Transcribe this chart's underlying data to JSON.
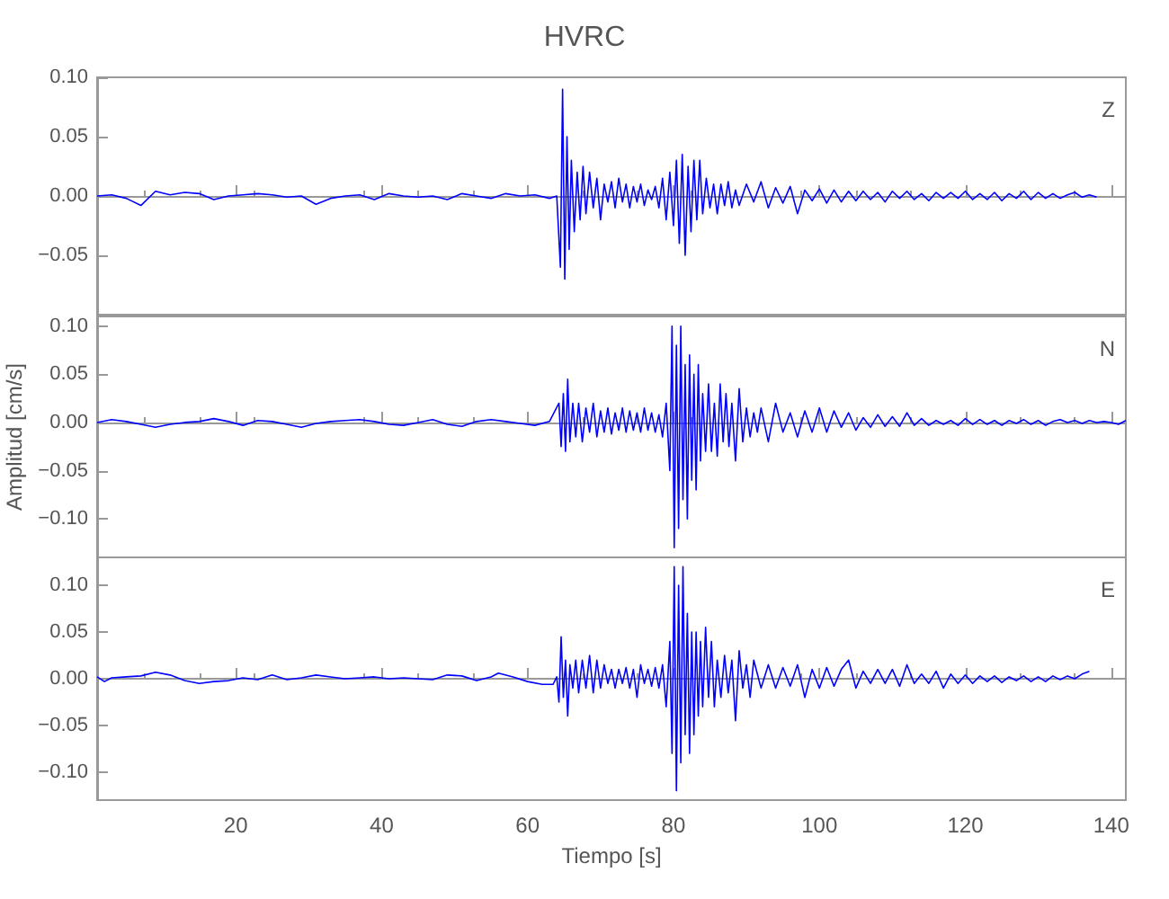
{
  "chart_data": [
    {
      "type": "line",
      "title": "HVRC",
      "annotations": [
        "Z"
      ],
      "xlim": [
        1,
        142
      ],
      "xticks": [
        20,
        40,
        60,
        80,
        100,
        120,
        140
      ],
      "ylim": [
        -0.1,
        0.1
      ],
      "yticks": [
        {
          "value": -0.05,
          "label": "−0.05"
        },
        {
          "value": 0,
          "label": "0.00"
        },
        {
          "value": 0.05,
          "label": "0.05"
        },
        {
          "value": 0.1,
          "label": "0.10"
        }
      ],
      "tick_labels": "y",
      "series": [
        {
          "color": "#0000ff",
          "x": [
            1,
            3,
            5,
            7,
            9,
            11,
            13,
            15,
            17,
            19,
            21,
            23,
            25,
            27,
            29,
            31,
            33,
            35,
            37,
            39,
            41,
            43,
            45,
            47,
            49,
            51,
            53,
            55,
            57,
            59,
            61,
            63,
            64,
            64.5,
            64.8,
            65.1,
            65.4,
            65.7,
            66,
            66.4,
            66.8,
            67.2,
            67.6,
            68,
            68.5,
            69,
            69.5,
            70,
            70.5,
            71,
            71.5,
            72,
            72.5,
            73,
            73.5,
            74,
            74.5,
            75,
            75.5,
            76,
            76.5,
            77,
            77.5,
            78,
            78.5,
            79,
            79.5,
            80,
            80.4,
            80.8,
            81.2,
            81.6,
            82,
            82.4,
            82.8,
            83.2,
            83.6,
            84,
            84.5,
            85,
            85.5,
            86,
            86.5,
            87,
            87.5,
            88,
            88.5,
            89,
            90,
            91,
            92,
            93,
            94,
            95,
            96,
            97,
            98,
            99,
            100,
            101,
            102,
            103,
            104,
            105,
            106,
            107,
            108,
            109,
            110,
            111,
            112,
            113,
            114,
            115,
            116,
            117,
            118,
            119,
            120,
            121,
            122,
            123,
            124,
            125,
            126,
            127,
            128,
            129,
            130,
            131,
            132,
            133,
            134,
            135,
            136,
            137,
            138
          ],
          "values": [
            0,
            0.001,
            -0.002,
            -0.008,
            0.004,
            0.001,
            0.003,
            0.002,
            -0.003,
            0,
            0.001,
            0.002,
            0.001,
            -0.001,
            0,
            -0.007,
            -0.002,
            0,
            0.001,
            -0.003,
            0.002,
            0,
            -0.001,
            0,
            -0.003,
            0.002,
            0,
            -0.002,
            0.002,
            0,
            0.001,
            -0.002,
            0,
            -0.06,
            0.09,
            -0.07,
            0.05,
            -0.045,
            0.03,
            -0.03,
            0.02,
            -0.02,
            0.025,
            -0.015,
            0.02,
            -0.01,
            0.015,
            -0.02,
            0.01,
            -0.005,
            0.012,
            -0.01,
            0.015,
            -0.005,
            0.01,
            -0.01,
            0.008,
            -0.005,
            0.01,
            -0.008,
            0.005,
            -0.003,
            0.008,
            -0.01,
            0.015,
            -0.02,
            0.02,
            -0.025,
            0.03,
            -0.04,
            0.035,
            -0.05,
            0.025,
            -0.03,
            0.03,
            -0.02,
            0.03,
            -0.015,
            0.015,
            -0.01,
            0.01,
            -0.015,
            0.01,
            -0.008,
            0.012,
            -0.01,
            0.005,
            -0.008,
            0.01,
            -0.005,
            0.012,
            -0.01,
            0.007,
            -0.006,
            0.008,
            -0.015,
            0.005,
            -0.004,
            0.006,
            -0.006,
            0.005,
            -0.005,
            0.004,
            -0.004,
            0.004,
            -0.003,
            0.003,
            -0.005,
            0.004,
            -0.002,
            0.004,
            -0.003,
            0.002,
            -0.004,
            0.003,
            -0.002,
            0.003,
            -0.002,
            0.004,
            -0.003,
            0.002,
            -0.003,
            0.003,
            -0.004,
            0.002,
            -0.002,
            0.004,
            -0.003,
            0.003,
            -0.002,
            0.002,
            -0.002,
            0.001,
            0.003,
            -0.001,
            0.001,
            -0.001
          ]
        }
      ]
    },
    {
      "type": "line",
      "ylabel": "Amplitud [cm/s]",
      "annotations": [
        "N"
      ],
      "xlim": [
        1,
        142
      ],
      "xticks": [
        20,
        40,
        60,
        80,
        100,
        120,
        140
      ],
      "ylim": [
        -0.14,
        0.11
      ],
      "yticks": [
        {
          "value": -0.1,
          "label": "−0.10"
        },
        {
          "value": -0.05,
          "label": "−0.05"
        },
        {
          "value": 0,
          "label": "0.00"
        },
        {
          "value": 0.05,
          "label": "0.05"
        },
        {
          "value": 0.1,
          "label": "0.10"
        }
      ],
      "tick_labels": "y",
      "series": [
        {
          "color": "#0000ff",
          "x": [
            1,
            3,
            5,
            7,
            9,
            11,
            13,
            15,
            17,
            19,
            21,
            23,
            25,
            27,
            29,
            31,
            33,
            35,
            37,
            39,
            41,
            43,
            45,
            47,
            49,
            51,
            53,
            55,
            57,
            59,
            61,
            63,
            64.3,
            64.6,
            64.9,
            65.2,
            65.5,
            65.8,
            66.2,
            66.6,
            67,
            67.5,
            68,
            68.5,
            69,
            69.5,
            70,
            70.5,
            71,
            71.5,
            72,
            72.5,
            73,
            73.5,
            74,
            74.5,
            75,
            75.5,
            76,
            76.5,
            77,
            77.5,
            78,
            78.5,
            79,
            79.5,
            79.8,
            80.1,
            80.4,
            80.7,
            81,
            81.3,
            81.6,
            81.9,
            82.2,
            82.5,
            82.8,
            83.1,
            83.4,
            83.7,
            84,
            84.4,
            84.8,
            85.2,
            85.6,
            86,
            86.4,
            86.8,
            87.2,
            87.6,
            88,
            88.5,
            89,
            89.5,
            90,
            90.5,
            91,
            91.5,
            92,
            93,
            94,
            95,
            96,
            97,
            98,
            99,
            100,
            101,
            102,
            103,
            104,
            105,
            106,
            107,
            108,
            109,
            110,
            111,
            112,
            113,
            114,
            115,
            116,
            117,
            118,
            119,
            120,
            121,
            122,
            123,
            124,
            125,
            126,
            127,
            128,
            129,
            130,
            131,
            132,
            133,
            134,
            135,
            136,
            137,
            138,
            139,
            140,
            141,
            142
          ],
          "values": [
            0,
            0.003,
            0.001,
            -0.002,
            -0.005,
            -0.002,
            0,
            0.001,
            0.004,
            0.001,
            -0.003,
            0.002,
            0.001,
            -0.002,
            -0.005,
            -0.001,
            0.001,
            0.002,
            0.003,
            0.001,
            -0.002,
            -0.003,
            0,
            0.003,
            -0.002,
            -0.004,
            0.001,
            0.003,
            0.001,
            -0.001,
            -0.003,
            0.001,
            0.02,
            -0.025,
            0.03,
            -0.03,
            0.045,
            -0.02,
            0.02,
            -0.015,
            0.02,
            -0.02,
            0.015,
            -0.01,
            0.02,
            -0.015,
            0.012,
            -0.01,
            0.015,
            -0.012,
            0.01,
            -0.008,
            0.015,
            -0.01,
            0.012,
            -0.008,
            0.01,
            -0.01,
            0.015,
            -0.008,
            0.01,
            -0.01,
            0.008,
            -0.015,
            0.02,
            -0.05,
            0.1,
            -0.13,
            0.08,
            -0.11,
            0.1,
            -0.08,
            0.06,
            -0.1,
            0.07,
            -0.06,
            0.05,
            -0.07,
            0.06,
            -0.04,
            0.03,
            -0.03,
            0.04,
            -0.03,
            0.02,
            -0.035,
            0.04,
            -0.02,
            0.03,
            -0.025,
            0.02,
            -0.04,
            0.035,
            -0.02,
            0.015,
            -0.015,
            0.01,
            -0.01,
            0.015,
            -0.02,
            0.02,
            -0.01,
            0.01,
            -0.015,
            0.012,
            -0.01,
            0.015,
            -0.01,
            0.012,
            -0.005,
            0.01,
            -0.008,
            0.005,
            -0.005,
            0.008,
            -0.004,
            0.006,
            -0.004,
            0.01,
            -0.003,
            0.004,
            -0.003,
            0.002,
            -0.002,
            0.002,
            -0.003,
            0.004,
            -0.002,
            0.003,
            -0.002,
            0.002,
            -0.003,
            0.002,
            -0.001,
            0.003,
            -0.002,
            0.002,
            -0.003,
            0.001,
            0.003,
            0,
            0.002,
            -0.001,
            0.002,
            0,
            0.001,
            0,
            -0.002,
            0.002
          ]
        }
      ]
    },
    {
      "type": "line",
      "xlabel": "Tiempo [s]",
      "annotations": [
        "E"
      ],
      "xlim": [
        1,
        142
      ],
      "xticks": [
        20,
        40,
        60,
        80,
        100,
        120,
        140
      ],
      "ylim": [
        -0.13,
        0.13
      ],
      "yticks": [
        {
          "value": -0.1,
          "label": "−0.10"
        },
        {
          "value": -0.05,
          "label": "−0.05"
        },
        {
          "value": 0,
          "label": "0.00"
        },
        {
          "value": 0.05,
          "label": "0.05"
        },
        {
          "value": 0.1,
          "label": "0.10"
        }
      ],
      "series": [
        {
          "color": "#0000ff",
          "x": [
            1,
            2,
            3,
            5,
            7,
            9,
            11,
            13,
            15,
            17,
            19,
            21,
            23,
            25,
            27,
            29,
            31,
            33,
            35,
            37,
            39,
            41,
            43,
            45,
            47,
            49,
            51,
            53,
            55,
            56,
            58,
            60,
            62,
            63.5,
            64,
            64.3,
            64.6,
            64.9,
            65.2,
            65.5,
            65.8,
            66.2,
            66.6,
            67,
            67.5,
            68,
            68.5,
            69,
            69.5,
            70,
            70.5,
            71,
            71.5,
            72,
            72.5,
            73,
            73.5,
            74,
            74.5,
            75,
            75.5,
            76,
            76.5,
            77,
            77.5,
            78,
            78.5,
            79,
            79.5,
            79.8,
            80.1,
            80.4,
            80.7,
            81,
            81.3,
            81.6,
            81.9,
            82.2,
            82.5,
            82.8,
            83.1,
            83.4,
            83.7,
            84,
            84.4,
            84.8,
            85.2,
            85.6,
            86,
            86.5,
            87,
            87.5,
            88,
            88.5,
            89,
            89.5,
            90,
            90.5,
            91,
            92,
            93,
            94,
            95,
            96,
            97,
            98,
            99,
            100,
            101,
            102,
            103,
            104,
            105,
            106,
            107,
            108,
            109,
            110,
            111,
            112,
            113,
            114,
            115,
            116,
            117,
            118,
            119,
            120,
            121,
            122,
            123,
            124,
            125,
            126,
            127,
            128,
            129,
            130,
            131,
            132,
            133,
            134,
            135,
            136,
            137
          ],
          "values": [
            0.002,
            -0.003,
            0.001,
            0.002,
            0.003,
            0.007,
            0.004,
            -0.002,
            -0.005,
            -0.003,
            -0.002,
            0.001,
            -0.001,
            0.004,
            -0.001,
            0.001,
            0.004,
            0.002,
            0,
            0.001,
            0.002,
            0,
            0.001,
            0,
            -0.001,
            0.004,
            0.003,
            -0.002,
            0.002,
            0.006,
            0.002,
            -0.003,
            -0.006,
            -0.006,
            0.002,
            -0.025,
            0.045,
            -0.02,
            0.02,
            -0.04,
            0.015,
            -0.01,
            0.02,
            -0.015,
            0.02,
            -0.01,
            0.025,
            -0.015,
            0.02,
            -0.01,
            0.015,
            -0.005,
            0.01,
            -0.01,
            0.01,
            -0.005,
            0.012,
            -0.01,
            0.01,
            -0.02,
            0.015,
            -0.005,
            0.01,
            -0.008,
            0.012,
            -0.01,
            0.015,
            -0.03,
            0.04,
            -0.08,
            0.12,
            -0.12,
            0.1,
            -0.09,
            0.12,
            -0.06,
            0.07,
            -0.08,
            0.05,
            -0.06,
            0.05,
            -0.04,
            0.04,
            -0.03,
            0.055,
            -0.02,
            0.04,
            -0.03,
            0.02,
            -0.02,
            0.025,
            -0.015,
            0.02,
            -0.045,
            0.03,
            -0.01,
            0.015,
            -0.02,
            0.02,
            -0.01,
            0.015,
            -0.01,
            0.012,
            -0.008,
            0.015,
            -0.02,
            0.01,
            -0.01,
            0.012,
            -0.008,
            0.01,
            0.02,
            -0.01,
            0.008,
            -0.005,
            0.01,
            -0.005,
            0.01,
            -0.008,
            0.015,
            -0.005,
            0.005,
            -0.005,
            0.008,
            -0.01,
            0.005,
            -0.005,
            0.004,
            -0.005,
            0.003,
            -0.003,
            0.003,
            -0.004,
            0.002,
            -0.002,
            0.003,
            -0.003,
            0.002,
            -0.003,
            0.003,
            -0.001,
            0.003,
            0,
            0.005,
            0.008
          ]
        }
      ]
    }
  ]
}
